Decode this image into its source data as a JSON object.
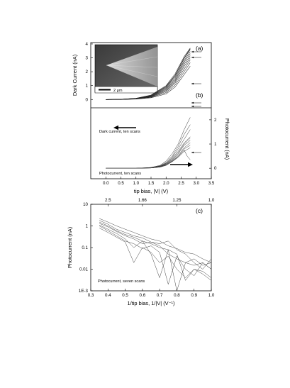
{
  "chart_data": [
    {
      "panel": "(a)",
      "type": "line",
      "ylabel": "Dark Current (nA)",
      "xlim": [
        -0.5,
        3.5
      ],
      "ylim": [
        -0.6,
        4.1
      ],
      "yticks": [
        0,
        1,
        2,
        3,
        4
      ],
      "annotation": "Dark current, ten scans",
      "inset_scale_label": "2 μm",
      "series": [
        {
          "x": [
            0.0,
            0.5,
            1.0,
            1.5,
            2.0,
            2.3,
            2.6,
            2.8
          ],
          "y": [
            0.0,
            0.0,
            0.03,
            0.12,
            0.4,
            0.9,
            1.8,
            2.4
          ]
        },
        {
          "x": [
            0.0,
            0.5,
            1.0,
            1.5,
            2.0,
            2.3,
            2.6,
            2.8
          ],
          "y": [
            0.0,
            0.0,
            0.04,
            0.15,
            0.5,
            1.05,
            2.0,
            2.65
          ]
        },
        {
          "x": [
            0.0,
            0.5,
            1.0,
            1.5,
            2.0,
            2.3,
            2.6,
            2.8
          ],
          "y": [
            0.0,
            0.01,
            0.05,
            0.18,
            0.58,
            1.2,
            2.2,
            2.85
          ]
        },
        {
          "x": [
            0.0,
            0.5,
            1.0,
            1.5,
            2.0,
            2.3,
            2.6,
            2.8
          ],
          "y": [
            0.0,
            0.01,
            0.05,
            0.2,
            0.65,
            1.3,
            2.4,
            3.0
          ]
        },
        {
          "x": [
            0.0,
            0.5,
            1.0,
            1.5,
            2.0,
            2.3,
            2.6,
            2.8
          ],
          "y": [
            0.0,
            0.01,
            0.06,
            0.22,
            0.72,
            1.4,
            2.55,
            3.15
          ]
        },
        {
          "x": [
            0.0,
            0.5,
            1.0,
            1.5,
            2.0,
            2.3,
            2.6,
            2.8
          ],
          "y": [
            0.0,
            0.01,
            0.06,
            0.24,
            0.78,
            1.5,
            2.7,
            3.3
          ]
        },
        {
          "x": [
            0.0,
            0.5,
            1.0,
            1.5,
            2.0,
            2.3,
            2.6,
            2.8
          ],
          "y": [
            0.0,
            0.02,
            0.07,
            0.26,
            0.84,
            1.6,
            2.8,
            3.45
          ]
        },
        {
          "x": [
            0.0,
            0.5,
            1.0,
            1.5,
            2.0,
            2.3,
            2.6,
            2.8
          ],
          "y": [
            0.0,
            0.02,
            0.08,
            0.28,
            0.9,
            1.7,
            2.95,
            3.6
          ]
        },
        {
          "x": [
            0.0,
            0.5,
            1.0,
            1.5,
            2.0,
            2.3,
            2.6,
            2.8
          ],
          "y": [
            0.0,
            0.02,
            0.08,
            0.3,
            0.95,
            1.75,
            3.0,
            3.65
          ]
        },
        {
          "x": [
            0.0,
            0.5,
            1.0,
            1.5,
            2.0,
            2.3,
            2.6,
            2.8
          ],
          "y": [
            0.0,
            0.02,
            0.09,
            0.32,
            1.0,
            1.85,
            3.1,
            3.7
          ]
        }
      ]
    },
    {
      "panel": "(b)",
      "type": "line",
      "xlabel": "tip bias, |V| (V)",
      "ylabel": "Photocurrent (nA)",
      "xlim": [
        -0.5,
        3.5
      ],
      "xticks": [
        0.0,
        0.5,
        1.0,
        1.5,
        2.0,
        2.5,
        3.0,
        3.5
      ],
      "ylim": [
        -0.2,
        2.7
      ],
      "yticks": [
        0,
        1,
        2
      ],
      "annotation": "Photocurrent, ten scans",
      "series": [
        {
          "x": [
            0.0,
            1.0,
            1.5,
            1.8,
            2.0,
            2.2,
            2.4,
            2.6,
            2.8
          ],
          "y": [
            0.0,
            0.0,
            0.03,
            0.12,
            0.3,
            0.6,
            1.0,
            1.6,
            2.1
          ]
        },
        {
          "x": [
            0.0,
            1.0,
            1.5,
            1.8,
            2.0,
            2.2,
            2.4,
            2.6,
            2.8
          ],
          "y": [
            0.0,
            0.0,
            0.03,
            0.1,
            0.25,
            0.5,
            0.9,
            1.4,
            1.8
          ]
        },
        {
          "x": [
            0.0,
            1.0,
            1.5,
            1.8,
            2.0,
            2.2,
            2.4,
            2.6,
            2.8
          ],
          "y": [
            0.0,
            0.0,
            0.02,
            0.09,
            0.22,
            0.45,
            0.8,
            1.2,
            1.6
          ]
        },
        {
          "x": [
            0.0,
            1.0,
            1.5,
            1.8,
            2.0,
            2.2,
            2.4,
            2.6,
            2.8
          ],
          "y": [
            0.0,
            0.0,
            0.02,
            0.08,
            0.2,
            0.42,
            0.7,
            1.05,
            1.3
          ]
        },
        {
          "x": [
            0.0,
            1.0,
            1.5,
            1.8,
            2.0,
            2.2,
            2.4,
            2.6,
            2.8
          ],
          "y": [
            0.0,
            0.0,
            0.02,
            0.07,
            0.18,
            0.38,
            0.65,
            1.0,
            1.25
          ]
        },
        {
          "x": [
            0.0,
            1.0,
            1.5,
            1.8,
            2.0,
            2.2,
            2.4,
            2.6,
            2.8
          ],
          "y": [
            0.0,
            0.0,
            0.02,
            0.07,
            0.17,
            0.35,
            0.6,
            0.95,
            1.15
          ]
        },
        {
          "x": [
            0.0,
            1.0,
            1.5,
            1.8,
            2.0,
            2.2,
            2.4,
            2.6,
            2.8
          ],
          "y": [
            0.0,
            0.0,
            0.01,
            0.06,
            0.15,
            0.32,
            0.55,
            0.85,
            1.05
          ]
        },
        {
          "x": [
            0.0,
            1.0,
            1.5,
            1.8,
            2.0,
            2.2,
            2.4,
            2.6,
            2.8
          ],
          "y": [
            0.0,
            0.0,
            0.01,
            0.06,
            0.14,
            0.3,
            0.5,
            0.8,
            0.95
          ]
        },
        {
          "x": [
            0.0,
            1.0,
            1.5,
            1.8,
            2.0,
            2.2,
            2.4,
            2.6,
            2.8
          ],
          "y": [
            0.0,
            0.0,
            0.01,
            0.05,
            0.12,
            0.27,
            0.45,
            0.7,
            0.85
          ]
        },
        {
          "x": [
            0.0,
            1.0,
            1.5,
            1.8,
            2.0,
            2.2,
            2.4,
            2.6,
            2.7,
            2.8
          ],
          "y": [
            0.0,
            0.0,
            0.01,
            0.05,
            0.12,
            0.28,
            0.48,
            0.75,
            0.5,
            0.35
          ]
        }
      ]
    },
    {
      "panel": "(c)",
      "type": "line",
      "xlabel": "1/tip bias, 1/|V| (V⁻¹)",
      "ylabel": "Photocurrent (nA)",
      "xlim": [
        0.3,
        1.0
      ],
      "xticks": [
        0.3,
        0.4,
        0.5,
        0.6,
        0.7,
        0.8,
        0.9,
        1.0
      ],
      "xticklabels": [
        "0.3",
        "0.4",
        "0.5",
        "0.6",
        "0.7",
        "0.8",
        "0.9",
        "1.0"
      ],
      "ylim": [
        0.001,
        10
      ],
      "yscale": "log",
      "yticks": [
        10,
        1,
        0.1,
        0.01,
        0.001
      ],
      "yticklabels": [
        "10",
        "1",
        "0.1",
        "0.01",
        "1E-3"
      ],
      "top_axis_labels": [
        {
          "value": 0.4,
          "label": "2.5"
        },
        {
          "value": 0.6,
          "label": "1.66"
        },
        {
          "value": 0.8,
          "label": "1.25"
        },
        {
          "value": 1.0,
          "label": "1.0"
        }
      ],
      "annotation": "Photocurrent, seven scans",
      "series": [
        {
          "x": [
            0.35,
            0.4,
            0.45,
            0.5,
            0.55,
            0.6,
            0.65,
            0.7,
            0.75,
            0.8,
            0.85,
            0.9,
            0.95,
            1.0
          ],
          "y": [
            2.2,
            1.5,
            1.0,
            0.7,
            0.5,
            0.35,
            0.25,
            0.2,
            0.12,
            0.09,
            0.06,
            0.05,
            0.03,
            0.02
          ]
        },
        {
          "x": [
            0.35,
            0.4,
            0.45,
            0.5,
            0.55,
            0.6,
            0.65,
            0.7,
            0.75,
            0.8,
            0.85,
            0.9,
            0.95,
            1.0
          ],
          "y": [
            1.8,
            1.2,
            0.7,
            0.5,
            0.35,
            0.28,
            0.18,
            0.15,
            0.2,
            0.08,
            0.05,
            0.02,
            0.01,
            0.03
          ]
        },
        {
          "x": [
            0.35,
            0.4,
            0.45,
            0.5,
            0.55,
            0.6,
            0.65,
            0.7,
            0.75,
            0.8,
            0.85,
            0.9,
            0.95,
            1.0
          ],
          "y": [
            1.5,
            1.0,
            0.6,
            0.4,
            0.3,
            0.2,
            0.15,
            0.1,
            0.08,
            0.05,
            0.003,
            0.01,
            0.008,
            0.004
          ]
        },
        {
          "x": [
            0.35,
            0.4,
            0.45,
            0.5,
            0.55,
            0.6,
            0.65,
            0.7,
            0.75,
            0.8,
            0.85,
            0.9,
            0.95,
            1.0
          ],
          "y": [
            1.3,
            0.9,
            0.55,
            0.35,
            0.25,
            0.15,
            0.18,
            0.12,
            0.05,
            0.03,
            0.02,
            0.015,
            0.02,
            0.01
          ]
        },
        {
          "x": [
            0.35,
            0.4,
            0.45,
            0.5,
            0.55,
            0.6,
            0.65,
            0.7,
            0.75,
            0.8,
            0.85,
            0.9,
            0.95,
            1.0
          ],
          "y": [
            1.1,
            0.7,
            0.45,
            0.25,
            0.1,
            0.2,
            0.05,
            0.004,
            0.08,
            0.001,
            0.02,
            0.03,
            0.015,
            0.02
          ]
        },
        {
          "x": [
            0.35,
            0.4,
            0.45,
            0.5,
            0.55,
            0.6,
            0.65,
            0.7,
            0.75,
            0.8,
            0.85,
            0.9,
            0.95,
            1.0
          ],
          "y": [
            1.0,
            0.6,
            0.35,
            0.2,
            0.15,
            0.09,
            0.12,
            0.06,
            0.002,
            0.04,
            0.01,
            0.005,
            0.02,
            0.01
          ]
        },
        {
          "x": [
            0.35,
            0.4,
            0.45,
            0.5,
            0.55,
            0.6,
            0.65,
            0.7,
            0.75,
            0.8,
            0.85,
            0.9,
            0.95,
            1.0
          ],
          "y": [
            0.8,
            0.5,
            0.3,
            0.18,
            0.02,
            0.1,
            0.06,
            0.02,
            0.04,
            0.01,
            0.004,
            0.01,
            0.006,
            0.003
          ]
        }
      ]
    }
  ]
}
